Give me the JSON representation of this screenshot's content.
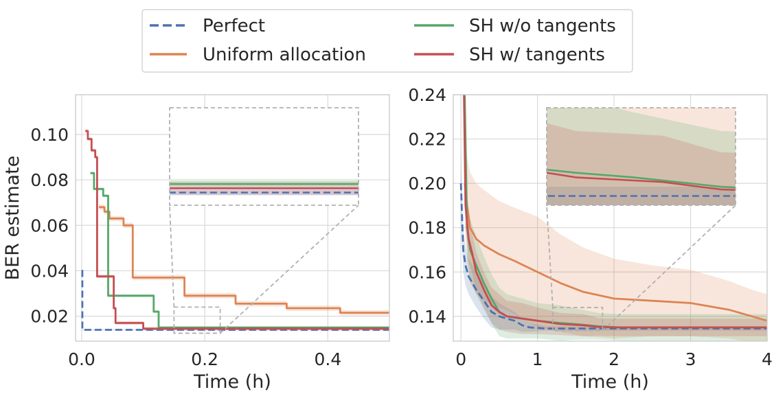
{
  "legend": {
    "entries": [
      {
        "label": "Perfect",
        "color": "#4c72b0",
        "dash": true
      },
      {
        "label": "Uniform allocation",
        "color": "#dd8452",
        "dash": false
      },
      {
        "label": "SH w/o tangents",
        "color": "#55a868",
        "dash": false
      },
      {
        "label": "SH w/ tangents",
        "color": "#c44e52",
        "dash": false
      }
    ],
    "placement": "top-center, outside plots"
  },
  "colors": {
    "perfect": "#4c72b0",
    "uniform": "#dd8452",
    "sh_no_tangents": "#55a868",
    "sh_tangents": "#c44e52",
    "grid": "#d9d9d9",
    "zoom_box": "#b0b0b0"
  },
  "chart_data": [
    {
      "type": "line",
      "xlabel": "Time (h)",
      "ylabel": "BER estimate",
      "xlim": [
        -0.01,
        0.5
      ],
      "ylim": [
        0.009,
        0.1175
      ],
      "xticks": [
        "0.0",
        "0.2",
        "0.4"
      ],
      "xtick_values": [
        0,
        0.2,
        0.4
      ],
      "yticks": [
        "0.02",
        "0.04",
        "0.06",
        "0.08",
        "0.10"
      ],
      "ytick_values": [
        0.02,
        0.04,
        0.06,
        0.08,
        0.1
      ],
      "grid": true,
      "inset": {
        "xlim": [
          0.15,
          0.225
        ],
        "ylim": [
          0.0125,
          0.024
        ]
      },
      "series": [
        {
          "name": "Perfect",
          "style": "step-dashed",
          "points": [
            [
              0,
              0.04
            ],
            [
              0.001,
              0.014
            ],
            [
              0.5,
              0.014
            ]
          ],
          "band": 0.0003
        },
        {
          "name": "Uniform allocation",
          "style": "step",
          "points": [
            [
              0.028,
              0.068
            ],
            [
              0.037,
              0.066
            ],
            [
              0.045,
              0.063
            ],
            [
              0.068,
              0.06
            ],
            [
              0.083,
              0.037
            ],
            [
              0.167,
              0.029
            ],
            [
              0.25,
              0.0255
            ],
            [
              0.333,
              0.0235
            ],
            [
              0.42,
              0.0215
            ],
            [
              0.5,
              0.0215
            ]
          ],
          "band": 0.0012
        },
        {
          "name": "SH w/o tangents",
          "style": "step",
          "points": [
            [
              0.014,
              0.083
            ],
            [
              0.02,
              0.076
            ],
            [
              0.035,
              0.073
            ],
            [
              0.043,
              0.029
            ],
            [
              0.083,
              0.029
            ],
            [
              0.117,
              0.022
            ],
            [
              0.125,
              0.015
            ],
            [
              0.5,
              0.014
            ]
          ],
          "band": 0.0006
        },
        {
          "name": "SH w/ tangents",
          "style": "step",
          "points": [
            [
              0.006,
              0.1015
            ],
            [
              0.01,
              0.098
            ],
            [
              0.016,
              0.093
            ],
            [
              0.022,
              0.09
            ],
            [
              0.025,
              0.0375
            ],
            [
              0.052,
              0.0235
            ],
            [
              0.055,
              0.017
            ],
            [
              0.1,
              0.0145
            ],
            [
              0.5,
              0.014
            ]
          ],
          "band": 0.0008
        }
      ]
    },
    {
      "type": "line",
      "xlabel": "Time (h)",
      "ylabel": "",
      "xlim": [
        -0.1,
        4.0
      ],
      "ylim": [
        0.1288,
        0.24
      ],
      "xticks": [
        "0",
        "1",
        "2",
        "3",
        "4"
      ],
      "xtick_values": [
        0,
        1,
        2,
        3,
        4
      ],
      "yticks": [
        "0.14",
        "0.16",
        "0.18",
        "0.20",
        "0.22",
        "0.24"
      ],
      "ytick_values": [
        0.14,
        0.16,
        0.18,
        0.2,
        0.22,
        0.24
      ],
      "grid": true,
      "inset": {
        "xlim": [
          1.2,
          1.85
        ],
        "ylim": [
          0.1335,
          0.144
        ]
      },
      "series": [
        {
          "name": "Perfect",
          "style": "line-dashed",
          "points": [
            [
              0,
              0.2
            ],
            [
              0.03,
              0.17
            ],
            [
              0.06,
              0.163
            ],
            [
              0.1,
              0.158
            ],
            [
              0.15,
              0.155
            ],
            [
              0.2,
              0.152
            ],
            [
              0.3,
              0.147
            ],
            [
              0.4,
              0.142
            ],
            [
              0.5,
              0.14
            ],
            [
              0.6,
              0.139
            ],
            [
              0.7,
              0.138
            ],
            [
              0.8,
              0.136
            ],
            [
              0.9,
              0.135
            ],
            [
              1.1,
              0.1345
            ],
            [
              4.0,
              0.1345
            ]
          ],
          "band": [
            0.016,
            0.01,
            0.009,
            0.008,
            0.008,
            0.008,
            0.008,
            0.007,
            0.006,
            0.005,
            0.004,
            0.003,
            0.002,
            0.001,
            0.001
          ]
        },
        {
          "name": "Uniform allocation",
          "style": "line",
          "points": [
            [
              0.05,
              0.2
            ],
            [
              0.08,
              0.19
            ],
            [
              0.12,
              0.18
            ],
            [
              0.2,
              0.175
            ],
            [
              0.3,
              0.172
            ],
            [
              0.5,
              0.168
            ],
            [
              0.7,
              0.165
            ],
            [
              1.0,
              0.16
            ],
            [
              1.3,
              0.155
            ],
            [
              1.6,
              0.151
            ],
            [
              2.0,
              0.148
            ],
            [
              2.5,
              0.147
            ],
            [
              3.0,
              0.146
            ],
            [
              3.5,
              0.143
            ],
            [
              3.8,
              0.14
            ],
            [
              4.0,
              0.138
            ]
          ],
          "band": [
            0.02,
            0.022,
            0.025,
            0.025,
            0.025,
            0.024,
            0.024,
            0.025,
            0.022,
            0.02,
            0.018,
            0.016,
            0.015,
            0.013,
            0.012,
            0.012
          ]
        },
        {
          "name": "SH w/o tangents",
          "style": "line",
          "points": [
            [
              0.05,
              0.24
            ],
            [
              0.08,
              0.18
            ],
            [
              0.12,
              0.17
            ],
            [
              0.2,
              0.163
            ],
            [
              0.3,
              0.155
            ],
            [
              0.4,
              0.148
            ],
            [
              0.5,
              0.142
            ],
            [
              0.6,
              0.14
            ],
            [
              0.8,
              0.139
            ],
            [
              1.0,
              0.138
            ],
            [
              1.3,
              0.137
            ],
            [
              1.5,
              0.1365
            ],
            [
              1.8,
              0.1355
            ],
            [
              2.1,
              0.135
            ],
            [
              4.0,
              0.135
            ]
          ],
          "band": [
            0.015,
            0.014,
            0.014,
            0.013,
            0.012,
            0.011,
            0.011,
            0.01,
            0.009,
            0.008,
            0.008,
            0.007,
            0.006,
            0.006,
            0.006
          ]
        },
        {
          "name": "SH w/ tangents",
          "style": "line",
          "points": [
            [
              0.04,
              0.24
            ],
            [
              0.06,
              0.19
            ],
            [
              0.1,
              0.175
            ],
            [
              0.15,
              0.168
            ],
            [
              0.2,
              0.16
            ],
            [
              0.3,
              0.152
            ],
            [
              0.4,
              0.145
            ],
            [
              0.5,
              0.142
            ],
            [
              0.6,
              0.14
            ],
            [
              0.8,
              0.139
            ],
            [
              1.0,
              0.138
            ],
            [
              1.3,
              0.1365
            ],
            [
              1.6,
              0.136
            ],
            [
              1.8,
              0.1352
            ],
            [
              2.0,
              0.135
            ],
            [
              4.0,
              0.135
            ]
          ],
          "band": [
            0.01,
            0.01,
            0.01,
            0.009,
            0.009,
            0.008,
            0.008,
            0.008,
            0.007,
            0.007,
            0.006,
            0.005,
            0.005,
            0.004,
            0.004,
            0.004
          ]
        }
      ]
    }
  ]
}
